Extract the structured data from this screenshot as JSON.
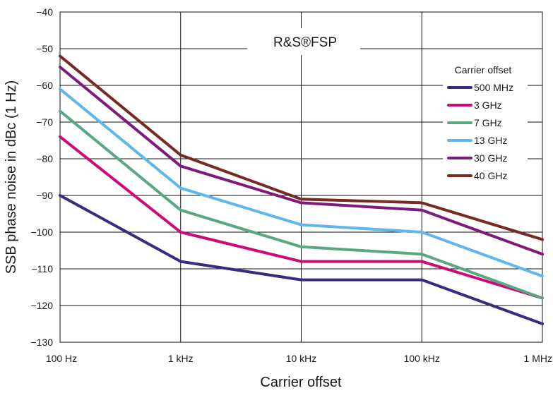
{
  "chart_data": {
    "type": "line",
    "title": "R&S®FSP",
    "xlabel": "Carrier offset",
    "ylabel": "SSB phase noise in dBc (1 Hz)",
    "x_scale": "log",
    "x": [
      100,
      1000,
      10000,
      100000,
      1000000
    ],
    "x_tick_labels": [
      "100 Hz",
      "1 kHz",
      "10 kHz",
      "100 kHz",
      "1 MHz"
    ],
    "xlim": [
      100,
      1000000
    ],
    "ylim": [
      -130,
      -40
    ],
    "y_ticks": [
      -40,
      -50,
      -60,
      -70,
      -80,
      -90,
      -100,
      -110,
      -120,
      -130
    ],
    "y_tick_labels": [
      "−40",
      "−50",
      "−60",
      "−70",
      "−80",
      "−90",
      "−100",
      "−110",
      "−120",
      "−130"
    ],
    "grid": true,
    "legend": {
      "title": "Carrier offset",
      "position": "right"
    },
    "series": [
      {
        "name": "500 MHz",
        "color": "#3b2a7e",
        "values": [
          -90,
          -108,
          -113,
          -113,
          -125
        ]
      },
      {
        "name": "3 GHz",
        "color": "#cc0a78",
        "values": [
          -74,
          -100,
          -108,
          -108,
          -118
        ]
      },
      {
        "name": "7 GHz",
        "color": "#5aa882",
        "values": [
          -67,
          -94,
          -104,
          -106,
          -118
        ]
      },
      {
        "name": "13 GHz",
        "color": "#5fb7ea",
        "values": [
          -61,
          -88,
          -98,
          -100,
          -112
        ]
      },
      {
        "name": "30 GHz",
        "color": "#7d1a7c",
        "values": [
          -55,
          -82,
          -92,
          -94,
          -106
        ]
      },
      {
        "name": "40 GHz",
        "color": "#772a22",
        "values": [
          -52,
          -79,
          -91,
          -92,
          -102
        ]
      }
    ]
  }
}
